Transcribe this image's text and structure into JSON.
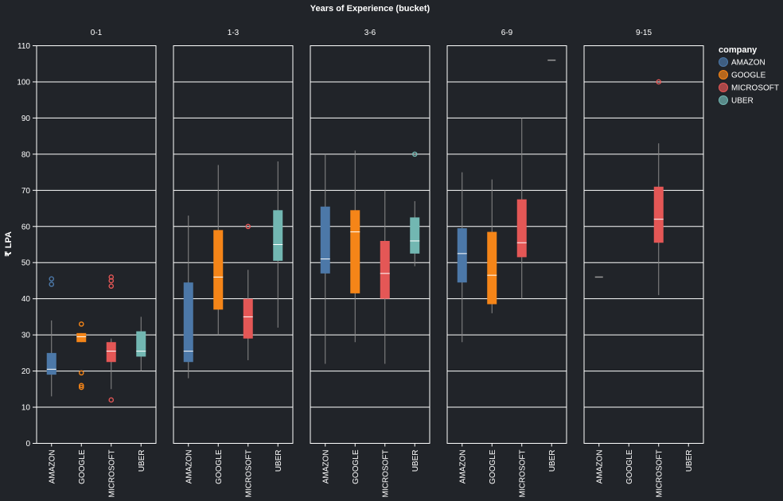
{
  "colors": {
    "background": "#212429",
    "grid": "#ffffff",
    "text": "#ffffff",
    "whisker": "#8a8a8a",
    "median": "#ffffff"
  },
  "chart_data": {
    "type": "boxplot",
    "title": "Years of Experience (bucket)",
    "ylabel": "₹ LPA",
    "xlabel": "",
    "ylim": [
      0,
      110
    ],
    "yticks": [
      0,
      10,
      20,
      30,
      40,
      50,
      60,
      70,
      80,
      90,
      100,
      110
    ],
    "grid": true,
    "legend_position": "right",
    "legend": {
      "title": "company",
      "entries": [
        {
          "label": "AMAZON",
          "color": "#4c78a8"
        },
        {
          "label": "GOOGLE",
          "color": "#f58518"
        },
        {
          "label": "MICROSOFT",
          "color": "#e45756"
        },
        {
          "label": "UBER",
          "color": "#72b7b2"
        }
      ]
    },
    "categories": [
      "AMAZON",
      "GOOGLE",
      "MICROSOFT",
      "UBER"
    ],
    "facets": [
      {
        "label": "0-1",
        "boxes": [
          {
            "company": "AMAZON",
            "min": 13,
            "q1": 19,
            "median": 20.5,
            "q3": 25,
            "max": 34,
            "outliers": [
              44,
              45.5
            ]
          },
          {
            "company": "GOOGLE",
            "min": 28,
            "q1": 28,
            "median": 29.5,
            "q3": 30.5,
            "max": 30.5,
            "outliers": [
              33,
              19.5,
              16,
              15.5
            ]
          },
          {
            "company": "MICROSOFT",
            "min": 15,
            "q1": 22.5,
            "median": 25.5,
            "q3": 28,
            "max": 29,
            "outliers": [
              46,
              45,
              43.5,
              12
            ]
          },
          {
            "company": "UBER",
            "min": 20,
            "q1": 24,
            "median": 25.5,
            "q3": 31,
            "max": 35,
            "outliers": []
          }
        ]
      },
      {
        "label": "1-3",
        "boxes": [
          {
            "company": "AMAZON",
            "min": 18,
            "q1": 22.5,
            "median": 25.5,
            "q3": 44.5,
            "max": 63,
            "outliers": []
          },
          {
            "company": "GOOGLE",
            "min": 30,
            "q1": 37,
            "median": 46,
            "q3": 59,
            "max": 77,
            "outliers": []
          },
          {
            "company": "MICROSOFT",
            "min": 23,
            "q1": 29,
            "median": 35,
            "q3": 40,
            "max": 48,
            "outliers": [
              60
            ]
          },
          {
            "company": "UBER",
            "min": 32,
            "q1": 50.5,
            "median": 55,
            "q3": 64.5,
            "max": 78,
            "outliers": []
          }
        ]
      },
      {
        "label": "3-6",
        "boxes": [
          {
            "company": "AMAZON",
            "min": 22,
            "q1": 47,
            "median": 51,
            "q3": 65.5,
            "max": 80,
            "outliers": []
          },
          {
            "company": "GOOGLE",
            "min": 28,
            "q1": 41.5,
            "median": 58.5,
            "q3": 64.5,
            "max": 81,
            "outliers": []
          },
          {
            "company": "MICROSOFT",
            "min": 22,
            "q1": 40,
            "median": 47,
            "q3": 56,
            "max": 70,
            "outliers": []
          },
          {
            "company": "UBER",
            "min": 49,
            "q1": 52.5,
            "median": 56,
            "q3": 62.5,
            "max": 67,
            "outliers": [
              80
            ]
          }
        ]
      },
      {
        "label": "6-9",
        "boxes": [
          {
            "company": "AMAZON",
            "min": 28,
            "q1": 44.5,
            "median": 52.5,
            "q3": 59.5,
            "max": 75,
            "outliers": []
          },
          {
            "company": "GOOGLE",
            "min": 36,
            "q1": 38.5,
            "median": 46.5,
            "q3": 58.5,
            "max": 73,
            "outliers": []
          },
          {
            "company": "MICROSOFT",
            "min": 40,
            "q1": 51.5,
            "median": 55.5,
            "q3": 67.5,
            "max": 90,
            "outliers": []
          },
          {
            "company": "UBER",
            "min": 106,
            "q1": 106,
            "median": 106,
            "q3": 106,
            "max": 106,
            "outliers": []
          }
        ]
      },
      {
        "label": "9-15",
        "boxes": [
          {
            "company": "AMAZON",
            "min": 46,
            "q1": 46,
            "median": 46,
            "q3": 46,
            "max": 46,
            "outliers": []
          },
          {
            "company": "GOOGLE",
            "min": null,
            "q1": null,
            "median": null,
            "q3": null,
            "max": null,
            "outliers": []
          },
          {
            "company": "MICROSOFT",
            "min": 41,
            "q1": 55.5,
            "median": 62,
            "q3": 71,
            "max": 83,
            "outliers": [
              100
            ]
          },
          {
            "company": "UBER",
            "min": null,
            "q1": null,
            "median": null,
            "q3": null,
            "max": null,
            "outliers": []
          }
        ]
      }
    ]
  }
}
